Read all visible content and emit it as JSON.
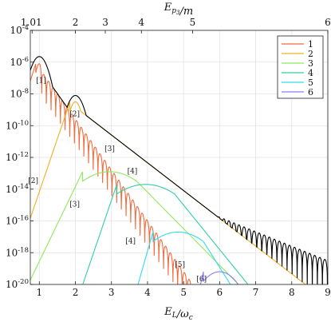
{
  "chart_data": {
    "type": "line",
    "xlabel": "E_L/ω_c",
    "top_xlabel": "E_{p_3}/m",
    "xlim": [
      0.75,
      9
    ],
    "ylim_log10": [
      -20,
      -4
    ],
    "x_ticks": [
      "1",
      "2",
      "3",
      "4",
      "5",
      "6",
      "7",
      "8",
      "9"
    ],
    "x_tick_values": [
      1,
      2,
      3,
      4,
      5,
      6,
      7,
      8,
      9
    ],
    "y_ticks": [
      "10^-20",
      "10^-18",
      "10^-16",
      "10^-14",
      "10^-12",
      "10^-10",
      "10^-8",
      "10^-6",
      "10^-4"
    ],
    "y_tick_exponents": [
      -20,
      -18,
      -16,
      -14,
      -12,
      -10,
      -8,
      -6,
      -4
    ],
    "top_ticks": [
      "1.01",
      "2",
      "3",
      "4",
      "5",
      "6"
    ],
    "top_tick_x": [
      0.8,
      2.0,
      2.83,
      3.83,
      5.25,
      9.0
    ],
    "grid": true,
    "legend_position": "top-right",
    "series": [
      {
        "name": "1",
        "color": "#f26b3d",
        "peak_x": 1.0,
        "peak_log": -6.1,
        "width": 0.1,
        "ramp": 0.55,
        "tail_slope": 3.2,
        "floor": -21,
        "oscillation": {
          "start": 1.0,
          "period": 0.13,
          "depth": 6
        }
      },
      {
        "name": "2",
        "color": "#f0b020",
        "peak_x": 2.0,
        "peak_log": -8.5,
        "width": 0.15,
        "ramp": 0.6,
        "tail_slope": 1.75,
        "floor": -21
      },
      {
        "name": "3",
        "color": "#8cea5c",
        "peak_x": 2.95,
        "peak_log": -12.9,
        "width": 0.75,
        "ramp": 0.85,
        "tail_slope": 2.3,
        "floor": -21
      },
      {
        "name": "4",
        "color": "#2fcfa8",
        "peak_x": 3.95,
        "peak_log": -13.7,
        "width": 0.8,
        "ramp": 0.6,
        "tail_slope": 2.8,
        "floor": -21
      },
      {
        "name": "5",
        "color": "#30dcf0",
        "peak_x": 4.85,
        "peak_log": -16.7,
        "width": 0.7,
        "ramp": 0.5,
        "tail_slope": 3.6,
        "floor": -21
      },
      {
        "name": "6",
        "color": "#8a7ef2",
        "peak_x": 6.0,
        "peak_log": -19.2,
        "width": 0.45,
        "ramp": 0.4,
        "tail_slope": 3.5,
        "floor": -21
      }
    ],
    "total_series": {
      "color": "#000000",
      "peaks": [
        {
          "x": 1.0,
          "log": -5.65
        },
        {
          "x": 2.0,
          "log": -8.1
        },
        {
          "x": 2.9,
          "log": -10.5
        },
        {
          "x": 3.95,
          "log": -13.5
        }
      ],
      "envelope_start": 4.3,
      "envelope_log_at_start": -14.2,
      "envelope_log_at_end": -18.5,
      "oscillation_period": 0.14,
      "oscillation_depth": 2.2
    },
    "annotations": [
      {
        "text": "[1]",
        "x": 1.05,
        "log": -7.3
      },
      {
        "text": "[2]",
        "x": 1.98,
        "log": -9.4
      },
      {
        "text": "[2]",
        "x": 0.83,
        "log": -13.6
      },
      {
        "text": "[3]",
        "x": 2.95,
        "log": -11.6
      },
      {
        "text": "[3]",
        "x": 1.98,
        "log": -15.1
      },
      {
        "text": "[4]",
        "x": 3.58,
        "log": -13.0
      },
      {
        "text": "[4]",
        "x": 3.53,
        "log": -17.4
      },
      {
        "text": "[5]",
        "x": 4.9,
        "log": -18.9
      },
      {
        "text": "[6]",
        "x": 5.5,
        "log": -19.8
      }
    ]
  }
}
